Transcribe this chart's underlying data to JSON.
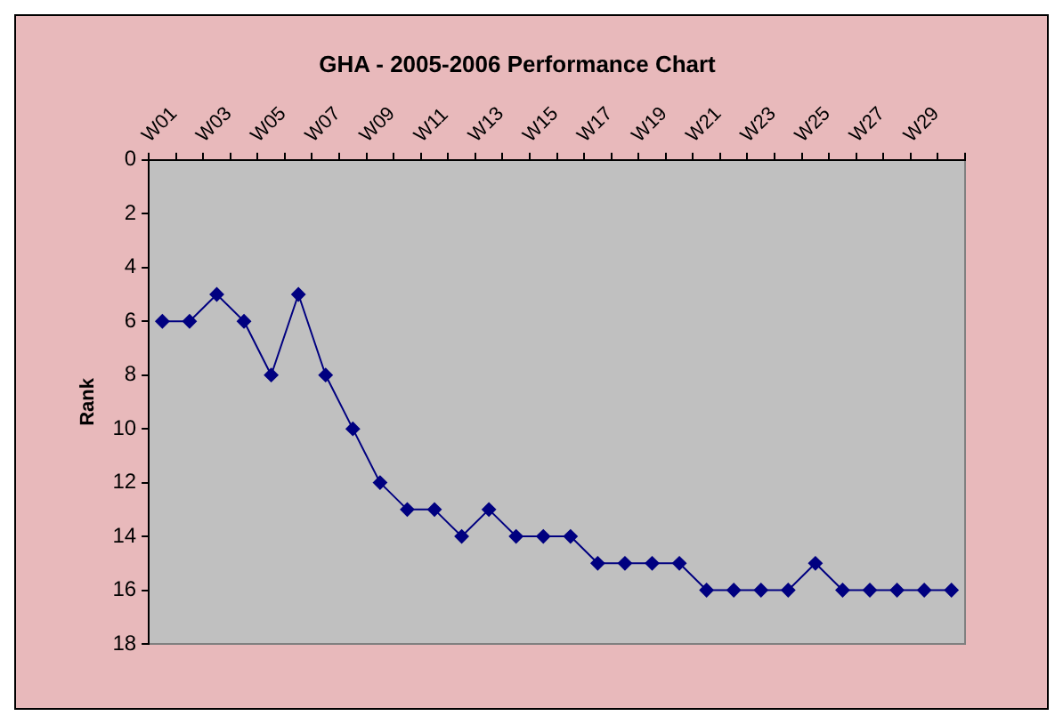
{
  "chart_data": {
    "type": "line",
    "title": "GHA - 2005-2006 Performance Chart",
    "ylabel": "Rank",
    "categories": [
      "W01",
      null,
      "W03",
      null,
      "W05",
      null,
      "W07",
      null,
      "W09",
      null,
      "W11",
      null,
      "W13",
      null,
      "W15",
      null,
      "W17",
      null,
      "W19",
      null,
      "W21",
      null,
      "W23",
      null,
      "W25",
      null,
      "W27",
      null,
      "W29",
      null
    ],
    "series": [
      {
        "color": "#000080",
        "values": [
          6,
          6,
          5,
          6,
          8,
          5,
          8,
          10,
          12,
          13,
          13,
          14,
          13,
          14,
          14,
          14,
          15,
          15,
          15,
          15,
          16,
          16,
          16,
          16,
          15,
          16,
          16,
          16,
          16,
          16
        ]
      }
    ],
    "ylim": [
      18,
      0
    ],
    "yticks": [
      0,
      2,
      4,
      6,
      8,
      10,
      12,
      14,
      16,
      18
    ],
    "grid": false,
    "legend": false,
    "marker": "diamond",
    "line_style": "solid"
  }
}
